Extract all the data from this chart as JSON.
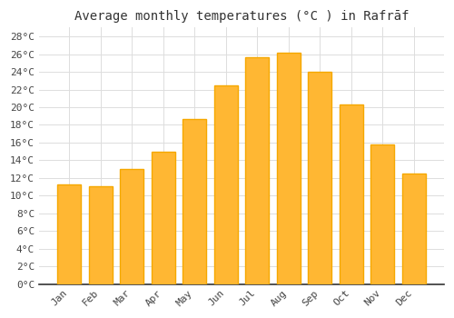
{
  "title": "Average monthly temperatures (°C ) in Rafrāf",
  "months": [
    "Jan",
    "Feb",
    "Mar",
    "Apr",
    "May",
    "Jun",
    "Jul",
    "Aug",
    "Sep",
    "Oct",
    "Nov",
    "Dec"
  ],
  "values": [
    11.3,
    11.1,
    13.0,
    15.0,
    18.7,
    22.5,
    25.7,
    26.2,
    24.0,
    20.3,
    15.8,
    12.5
  ],
  "bar_color_center": "#FFB733",
  "bar_color_edge": "#F5A800",
  "background_color": "#FFFFFF",
  "grid_color": "#DDDDDD",
  "ylim": [
    0,
    29
  ],
  "ytick_step": 2,
  "title_fontsize": 10,
  "tick_fontsize": 8,
  "font_family": "monospace"
}
